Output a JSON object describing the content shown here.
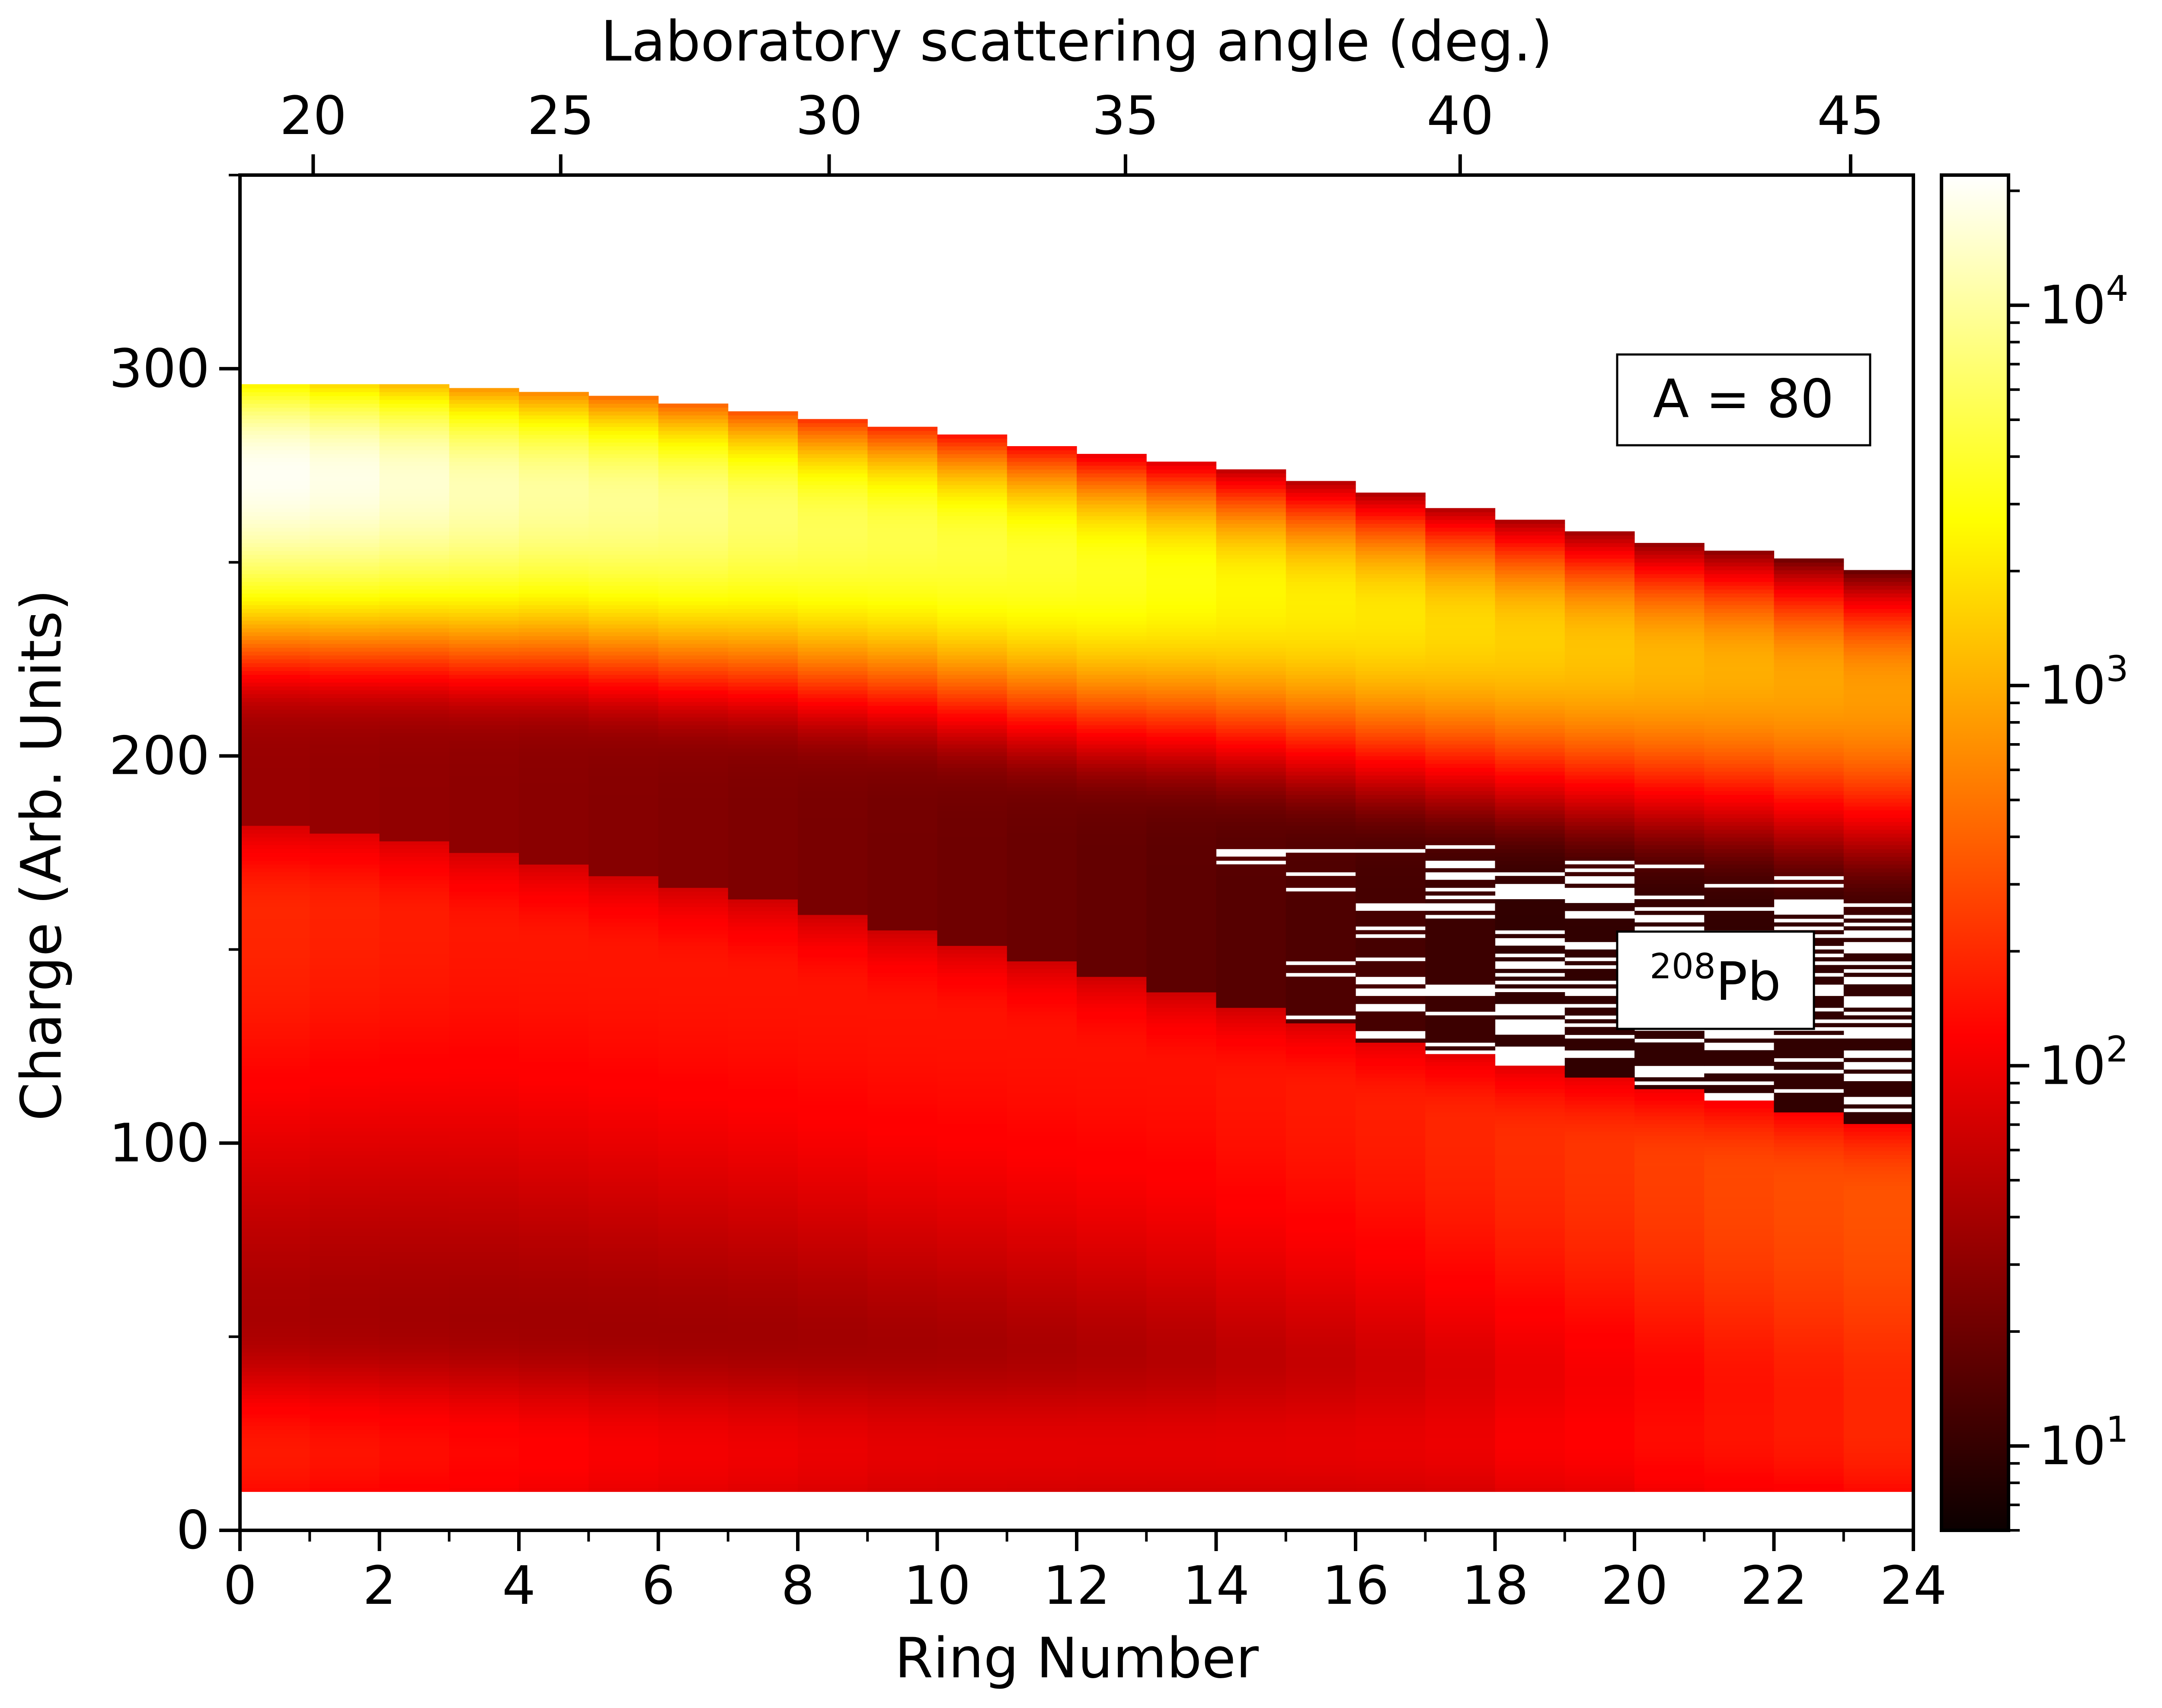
{
  "chart_data": {
    "type": "heatmap",
    "xlabel": "Ring Number",
    "ylabel": "Charge (Arb. Units)",
    "top_xlabel": "Laboratory scattering angle (deg.)",
    "xlim": [
      0,
      24
    ],
    "ylim": [
      0,
      350
    ],
    "x_ticks": [
      "0",
      "2",
      "4",
      "6",
      "8",
      "10",
      "12",
      "14",
      "16",
      "18",
      "20",
      "22",
      "24"
    ],
    "y_ticks": [
      "0",
      "100",
      "200",
      "300"
    ],
    "top_ticks": [
      {
        "label": "20",
        "ring": 1.05
      },
      {
        "label": "25",
        "ring": 4.6
      },
      {
        "label": "30",
        "ring": 8.45
      },
      {
        "label": "35",
        "ring": 12.7
      },
      {
        "label": "40",
        "ring": 17.5
      },
      {
        "label": "45",
        "ring": 23.1
      }
    ],
    "colorbar": {
      "scale": "log",
      "range": [
        6,
        22000
      ],
      "colormap": "hot",
      "tick_labels": [
        {
          "base": "10",
          "exp": "1",
          "value": 10
        },
        {
          "base": "10",
          "exp": "2",
          "value": 100
        },
        {
          "base": "10",
          "exp": "3",
          "value": 1000
        },
        {
          "base": "10",
          "exp": "4",
          "value": 10000
        }
      ]
    },
    "annotations": {
      "a80": "A = 80",
      "pb_mass": "208",
      "pb_symbol": "Pb"
    },
    "bands": {
      "ring_centers": [
        0.5,
        1.5,
        2.5,
        3.5,
        4.5,
        5.5,
        6.5,
        7.5,
        8.5,
        9.5,
        10.5,
        11.5,
        12.5,
        13.5,
        14.5,
        15.5,
        16.5,
        17.5,
        18.5,
        19.5,
        20.5,
        21.5,
        22.5,
        23.5
      ],
      "a80_band": {
        "center_charge": [
          273,
          272,
          271,
          269,
          268,
          266,
          264,
          262,
          259,
          257,
          254,
          251,
          248,
          246,
          243,
          240,
          237,
          234,
          231,
          228,
          225,
          223,
          220,
          217
        ],
        "top_edge": [
          294,
          294,
          294,
          293,
          292,
          291,
          289,
          287,
          285,
          283,
          281,
          278,
          276,
          274,
          272,
          269,
          266,
          262,
          259,
          256,
          253,
          251,
          249,
          246
        ],
        "peak_counts": [
          20000,
          18000,
          15000,
          12000,
          10000,
          9000,
          8000,
          6500,
          5500,
          5000,
          4500,
          4000,
          3500,
          3000,
          2500,
          2200,
          2000,
          1700,
          1500,
          1300,
          1100,
          1000,
          900,
          800
        ]
      },
      "pb208_band": {
        "center_charge": [
          160,
          160,
          158,
          155,
          152,
          149,
          146,
          143,
          139,
          135,
          132,
          128,
          124,
          120,
          116,
          113,
          109,
          105,
          101,
          98,
          95,
          92,
          89,
          86
        ],
        "top_edge": [
          180,
          178,
          176,
          173,
          170,
          167,
          164,
          161,
          157,
          153,
          149,
          145,
          141,
          137,
          133,
          129,
          124,
          121,
          118,
          115,
          112,
          109,
          106,
          103
        ],
        "peak_counts": [
          160,
          150,
          140,
          130,
          130,
          130,
          130,
          130,
          130,
          130,
          130,
          130,
          130,
          130,
          140,
          150,
          160,
          180,
          200,
          220,
          250,
          280,
          300,
          320
        ]
      },
      "low_charge_band": {
        "center_charge": [
          20,
          20,
          20,
          20,
          20,
          20,
          20,
          20,
          20,
          20,
          20,
          20,
          20,
          20,
          20,
          20,
          20,
          20,
          20,
          20,
          20,
          20,
          20,
          20
        ],
        "peak_counts": [
          130,
          120,
          110,
          100,
          90,
          80,
          75,
          70,
          65,
          60,
          60,
          60,
          60,
          60,
          60,
          60,
          60,
          60,
          70,
          70,
          80,
          80,
          80,
          90
        ]
      },
      "charge_floor": 10
    }
  }
}
